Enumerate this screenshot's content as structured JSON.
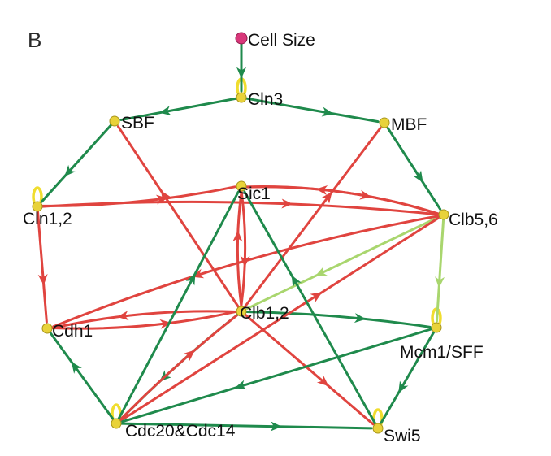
{
  "panel_label": "B",
  "colors": {
    "activation": "#1f8a4c",
    "inhibition": "#e0443f",
    "light_activation": "#a9d66e",
    "node": "#e8d23a",
    "node_stroke": "#a8951a",
    "input_node": "#d8377a",
    "self_loop": "#f0dd2e"
  },
  "nodes": [
    {
      "id": "cellsize",
      "label": "Cell Size",
      "type": "input"
    },
    {
      "id": "cln3",
      "label": "Cln3"
    },
    {
      "id": "sbf",
      "label": "SBF"
    },
    {
      "id": "mbf",
      "label": "MBF"
    },
    {
      "id": "cln12",
      "label": "Cln1,2"
    },
    {
      "id": "sic1",
      "label": "Sic1"
    },
    {
      "id": "clb56",
      "label": "Clb5,6"
    },
    {
      "id": "clb12",
      "label": "Clb1,2"
    },
    {
      "id": "cdh1",
      "label": "Cdh1"
    },
    {
      "id": "mcm1",
      "label": "Mcm1/SFF"
    },
    {
      "id": "cdc20",
      "label": "Cdc20&Cdc14"
    },
    {
      "id": "swi5",
      "label": "Swi5"
    }
  ],
  "edges": [
    {
      "from": "cellsize",
      "to": "cln3",
      "type": "activation"
    },
    {
      "from": "cln3",
      "to": "sbf",
      "type": "activation"
    },
    {
      "from": "cln3",
      "to": "mbf",
      "type": "activation"
    },
    {
      "from": "sbf",
      "to": "cln12",
      "type": "activation"
    },
    {
      "from": "mbf",
      "to": "clb56",
      "type": "activation"
    },
    {
      "from": "cln12",
      "to": "sic1",
      "type": "inhibition"
    },
    {
      "from": "cln12",
      "to": "cdh1",
      "type": "inhibition"
    },
    {
      "from": "sic1",
      "to": "clb56",
      "type": "inhibition"
    },
    {
      "from": "clb56",
      "to": "sic1",
      "type": "inhibition"
    },
    {
      "from": "sic1",
      "to": "clb12",
      "type": "inhibition"
    },
    {
      "from": "clb12",
      "to": "sic1",
      "type": "inhibition"
    },
    {
      "from": "clb12",
      "to": "sbf",
      "type": "inhibition"
    },
    {
      "from": "clb12",
      "to": "mbf",
      "type": "inhibition"
    },
    {
      "from": "clb12",
      "to": "cdh1",
      "type": "inhibition"
    },
    {
      "from": "cdh1",
      "to": "clb12",
      "type": "inhibition"
    },
    {
      "from": "clb12",
      "to": "swi5",
      "type": "inhibition"
    },
    {
      "from": "clb12",
      "to": "cdc20",
      "type": "activation"
    },
    {
      "from": "clb12",
      "to": "mcm1",
      "type": "activation"
    },
    {
      "from": "clb56",
      "to": "clb12",
      "type": "light_activation"
    },
    {
      "from": "clb56",
      "to": "mcm1",
      "type": "light_activation"
    },
    {
      "from": "clb56",
      "to": "cdh1",
      "type": "inhibition"
    },
    {
      "from": "cln12",
      "to": "clb56",
      "type": "inhibition"
    },
    {
      "from": "cdc20",
      "to": "clb56",
      "type": "inhibition"
    },
    {
      "from": "cdc20",
      "to": "clb12",
      "type": "inhibition"
    },
    {
      "from": "cdc20",
      "to": "sic1",
      "type": "activation"
    },
    {
      "from": "cdc20",
      "to": "cdh1",
      "type": "activation"
    },
    {
      "from": "cdc20",
      "to": "swi5",
      "type": "activation"
    },
    {
      "from": "mcm1",
      "to": "cdc20",
      "type": "activation"
    },
    {
      "from": "mcm1",
      "to": "swi5",
      "type": "activation"
    },
    {
      "from": "swi5",
      "to": "sic1",
      "type": "activation"
    }
  ],
  "self_loops": [
    "cln3",
    "cln12",
    "mcm1",
    "cdc20",
    "swi5"
  ]
}
